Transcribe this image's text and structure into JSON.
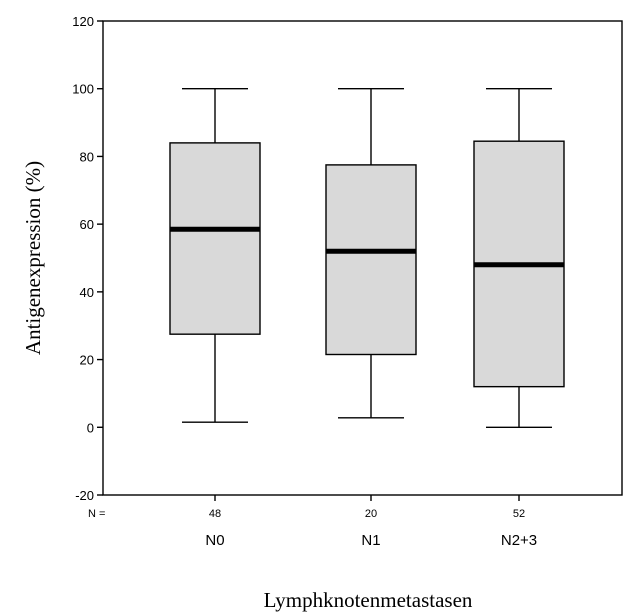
{
  "chart_data": {
    "type": "boxplot",
    "ylabel": "Antigenexpression (%)",
    "xlabel": "Lymphknotenmetastasen",
    "ylim": [
      -20,
      120
    ],
    "yticks": [
      -20,
      0,
      20,
      40,
      60,
      80,
      100,
      120
    ],
    "n_label": "N =",
    "box_color": "#d9d9d9",
    "grid": false,
    "categories": [
      "N0",
      "N1",
      "N2+3"
    ],
    "n": [
      "48",
      "20",
      "52"
    ],
    "boxes": [
      {
        "category": "N0",
        "min": 1.5,
        "q1": 27.5,
        "median": 58.5,
        "q3": 84,
        "max": 100
      },
      {
        "category": "N1",
        "min": 2.8,
        "q1": 21.5,
        "median": 52,
        "q3": 77.5,
        "max": 100
      },
      {
        "category": "N2+3",
        "min": 0,
        "q1": 12,
        "median": 48,
        "q3": 84.5,
        "max": 100
      }
    ]
  }
}
